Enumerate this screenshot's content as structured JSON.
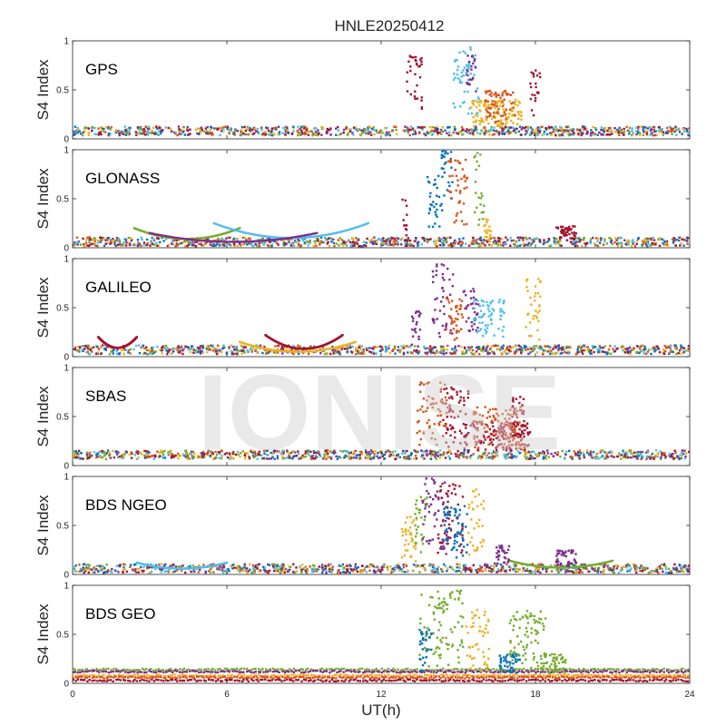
{
  "chart_data": {
    "type": "scatter",
    "title": "HNLE20250412",
    "xlabel": "UT(h)",
    "ylabel": "S4 Index",
    "xlim": [
      0,
      24
    ],
    "ylim": [
      0,
      1
    ],
    "xticks": [
      "0",
      "6",
      "12",
      "18",
      "24"
    ],
    "yticks": [
      "0",
      "0.5",
      "1"
    ],
    "grid": false,
    "watermark": "IONISE",
    "palette": [
      "#0072BD",
      "#D95319",
      "#EDB120",
      "#7E2F8E",
      "#77AC30",
      "#4DBEEE",
      "#A2142F"
    ],
    "panels": [
      {
        "name": "GPS",
        "baseline": 0.08,
        "events": [
          {
            "x0": 13.0,
            "x1": 13.6,
            "ymin": 0.3,
            "ymax": 0.85,
            "color": "#A2142F"
          },
          {
            "x0": 14.8,
            "x1": 15.8,
            "ymin": 0.25,
            "ymax": 0.95,
            "color": "#4DBEEE"
          },
          {
            "x0": 15.3,
            "x1": 15.7,
            "ymin": 0.3,
            "ymax": 0.85,
            "color": "#7E2F8E"
          },
          {
            "x0": 15.5,
            "x1": 17.5,
            "ymin": 0.12,
            "ymax": 0.4,
            "color": "#EDB120"
          },
          {
            "x0": 16.0,
            "x1": 17.2,
            "ymin": 0.15,
            "ymax": 0.5,
            "color": "#D95319"
          },
          {
            "x0": 17.8,
            "x1": 18.2,
            "ymin": 0.2,
            "ymax": 0.7,
            "color": "#A2142F"
          }
        ]
      },
      {
        "name": "GLONASS",
        "baseline": 0.06,
        "arcs": [
          {
            "x0": 2.4,
            "x1": 6.5,
            "peak": 0.2,
            "dip": 0.09,
            "color": "#77AC30"
          },
          {
            "x0": 5.5,
            "x1": 11.5,
            "peak": 0.25,
            "dip": 0.1,
            "color": "#4DBEEE"
          },
          {
            "x0": 3.0,
            "x1": 9.5,
            "peak": 0.15,
            "dip": 0.06,
            "color": "#7E2F8E"
          }
        ],
        "events": [
          {
            "x0": 12.8,
            "x1": 13.0,
            "ymin": 0.1,
            "ymax": 0.5,
            "color": "#A2142F"
          },
          {
            "x0": 13.8,
            "x1": 14.3,
            "ymin": 0.2,
            "ymax": 0.75,
            "color": "#0072BD"
          },
          {
            "x0": 14.3,
            "x1": 14.8,
            "ymin": 0.3,
            "ymax": 1.0,
            "color": "#0072BD"
          },
          {
            "x0": 14.6,
            "x1": 15.4,
            "ymin": 0.2,
            "ymax": 0.9,
            "color": "#D95319"
          },
          {
            "x0": 15.6,
            "x1": 16.0,
            "ymin": 0.2,
            "ymax": 0.98,
            "color": "#77AC30"
          },
          {
            "x0": 16.0,
            "x1": 16.3,
            "ymin": 0.08,
            "ymax": 0.3,
            "color": "#EDB120"
          },
          {
            "x0": 18.8,
            "x1": 19.6,
            "ymin": 0.08,
            "ymax": 0.22,
            "color": "#A2142F"
          }
        ]
      },
      {
        "name": "GALILEO",
        "baseline": 0.07,
        "arcs": [
          {
            "x0": 1.0,
            "x1": 2.5,
            "peak": 0.2,
            "dip": 0.09,
            "color": "#A2142F"
          },
          {
            "x0": 7.5,
            "x1": 10.5,
            "peak": 0.22,
            "dip": 0.08,
            "color": "#A2142F"
          },
          {
            "x0": 6.5,
            "x1": 11.0,
            "peak": 0.15,
            "dip": 0.05,
            "color": "#EDB120"
          }
        ],
        "events": [
          {
            "x0": 13.2,
            "x1": 13.6,
            "ymin": 0.1,
            "ymax": 0.5,
            "color": "#7E2F8E"
          },
          {
            "x0": 14.0,
            "x1": 14.8,
            "ymin": 0.2,
            "ymax": 0.95,
            "color": "#7E2F8E"
          },
          {
            "x0": 14.5,
            "x1": 15.2,
            "ymin": 0.15,
            "ymax": 0.6,
            "color": "#D95319"
          },
          {
            "x0": 15.2,
            "x1": 15.8,
            "ymin": 0.2,
            "ymax": 0.7,
            "color": "#7E2F8E"
          },
          {
            "x0": 15.6,
            "x1": 16.8,
            "ymin": 0.2,
            "ymax": 0.6,
            "color": "#4DBEEE"
          },
          {
            "x0": 17.6,
            "x1": 18.2,
            "ymin": 0.15,
            "ymax": 0.85,
            "color": "#EDB120"
          }
        ]
      },
      {
        "name": "SBAS",
        "baseline": 0.11,
        "events": [
          {
            "x0": 13.4,
            "x1": 14.6,
            "ymin": 0.2,
            "ymax": 0.85,
            "color": "#D95319"
          },
          {
            "x0": 14.4,
            "x1": 15.4,
            "ymin": 0.15,
            "ymax": 0.8,
            "color": "#A2142F"
          },
          {
            "x0": 15.2,
            "x1": 17.8,
            "ymin": 0.15,
            "ymax": 0.45,
            "color": "#A2142F"
          },
          {
            "x0": 15.6,
            "x1": 17.5,
            "ymin": 0.15,
            "ymax": 0.6,
            "color": "#D95319"
          },
          {
            "x0": 17.0,
            "x1": 17.6,
            "ymin": 0.3,
            "ymax": 0.7,
            "color": "#A2142F"
          }
        ]
      },
      {
        "name": "BDS NGEO",
        "baseline": 0.06,
        "arcs": [
          {
            "x0": 2.5,
            "x1": 6.0,
            "peak": 0.12,
            "dip": 0.06,
            "color": "#4DBEEE"
          },
          {
            "x0": 17.0,
            "x1": 21.0,
            "peak": 0.14,
            "dip": 0.07,
            "color": "#77AC30"
          }
        ],
        "events": [
          {
            "x0": 12.8,
            "x1": 13.4,
            "ymin": 0.1,
            "ymax": 0.6,
            "color": "#EDB120"
          },
          {
            "x0": 13.3,
            "x1": 13.8,
            "ymin": 0.2,
            "ymax": 0.8,
            "color": "#77AC30"
          },
          {
            "x0": 13.6,
            "x1": 14.6,
            "ymin": 0.2,
            "ymax": 1.0,
            "color": "#7E2F8E"
          },
          {
            "x0": 14.2,
            "x1": 15.2,
            "ymin": 0.2,
            "ymax": 0.95,
            "color": "#A2142F"
          },
          {
            "x0": 14.4,
            "x1": 15.4,
            "ymin": 0.15,
            "ymax": 0.7,
            "color": "#0072BD"
          },
          {
            "x0": 15.4,
            "x1": 16.0,
            "ymin": 0.15,
            "ymax": 0.9,
            "color": "#EDB120"
          },
          {
            "x0": 16.4,
            "x1": 17.0,
            "ymin": 0.08,
            "ymax": 0.3,
            "color": "#7E2F8E"
          },
          {
            "x0": 18.8,
            "x1": 19.6,
            "ymin": 0.08,
            "ymax": 0.25,
            "color": "#7E2F8E"
          }
        ]
      },
      {
        "name": "BDS GEO",
        "bands": [
          {
            "y": 0.14,
            "color": "#77AC30"
          },
          {
            "y": 0.12,
            "color": "#7E2F8E"
          },
          {
            "y": 0.08,
            "color": "#EDB120"
          },
          {
            "y": 0.06,
            "color": "#D95319"
          },
          {
            "y": 0.03,
            "color": "#A2142F"
          }
        ],
        "events": [
          {
            "x0": 13.5,
            "x1": 15.2,
            "ymin": 0.15,
            "ymax": 0.95,
            "color": "#77AC30"
          },
          {
            "x0": 13.5,
            "x1": 14.0,
            "ymin": 0.1,
            "ymax": 0.55,
            "color": "#0072BD"
          },
          {
            "x0": 15.3,
            "x1": 16.2,
            "ymin": 0.1,
            "ymax": 0.75,
            "color": "#EDB120"
          },
          {
            "x0": 16.6,
            "x1": 17.4,
            "ymin": 0.1,
            "ymax": 0.3,
            "color": "#0072BD"
          },
          {
            "x0": 17.0,
            "x1": 18.4,
            "ymin": 0.15,
            "ymax": 0.75,
            "color": "#77AC30"
          },
          {
            "x0": 18.2,
            "x1": 19.2,
            "ymin": 0.1,
            "ymax": 0.3,
            "color": "#77AC30"
          }
        ]
      }
    ]
  }
}
